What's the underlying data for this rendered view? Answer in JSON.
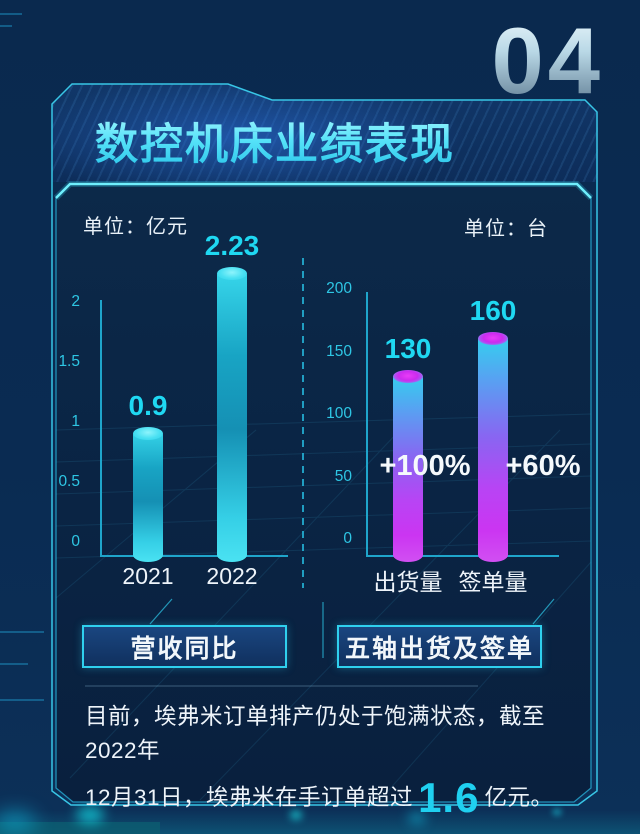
{
  "page_number": "04",
  "title": "数控机床业绩表现",
  "chart_data": [
    {
      "type": "bar",
      "unit": "单位：亿元",
      "categories": [
        "2021",
        "2022"
      ],
      "values": [
        0.9,
        2.23
      ],
      "value_labels": [
        "0.9",
        "2.23"
      ],
      "yticks": [
        "0",
        "0.5",
        "1",
        "1.5",
        "2"
      ],
      "ylim": [
        0,
        2
      ],
      "grid": false,
      "legend": "none",
      "footer_label": "营收同比",
      "bar_color": "#1fc8e6"
    },
    {
      "type": "bar",
      "unit": "单位：台",
      "categories": [
        "出货量",
        "签单量"
      ],
      "values": [
        130,
        160
      ],
      "value_labels": [
        "130",
        "160"
      ],
      "annotations": [
        "+100%",
        "+60%"
      ],
      "yticks": [
        "0",
        "50",
        "100",
        "150",
        "200"
      ],
      "ylim": [
        0,
        200
      ],
      "grid": false,
      "legend": "none",
      "footer_label": "五轴出货及签单",
      "bar_color": "cyan-to-magenta"
    }
  ],
  "footer_text": {
    "line1": "目前，埃弗米订单排产仍处于饱满状态，截至2022年",
    "line2_prefix": "12月31日，埃弗米在手订单超过",
    "highlight": "1.6",
    "line2_suffix": "亿元。"
  },
  "colors": {
    "background": "#0a2a50",
    "panel_border": "#38c6e6",
    "accent_cyan": "#1fd8f2",
    "accent_magenta": "#cf3af0",
    "text_white": "#eef4fa"
  }
}
